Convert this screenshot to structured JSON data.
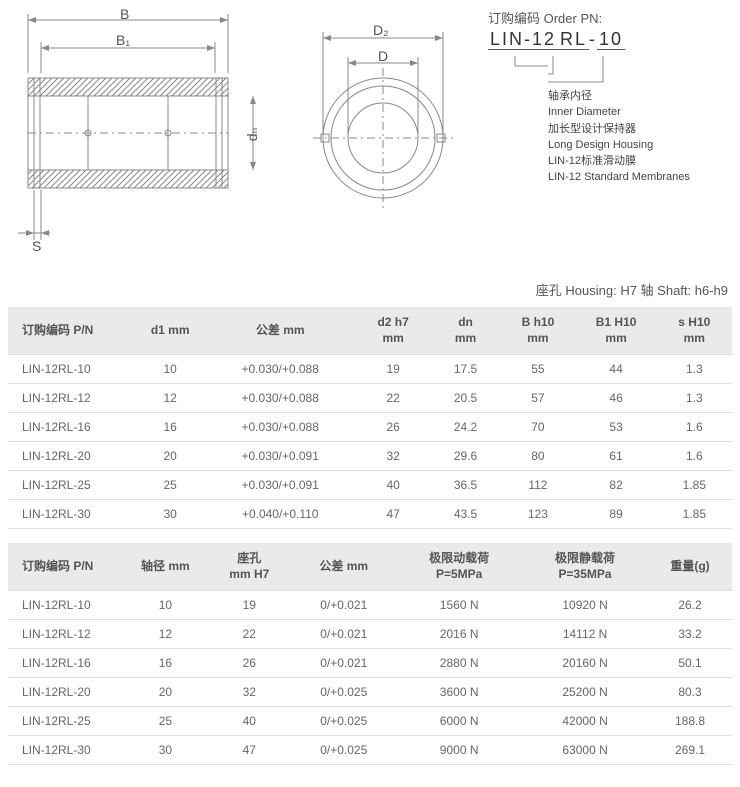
{
  "drawing": {
    "labels": {
      "B": "B",
      "B1": "B₁",
      "D2": "D₂",
      "D": "D",
      "dn": "dₙ",
      "S": "S"
    }
  },
  "orderPN": {
    "title": "订购编码 Order PN:",
    "code_parts": [
      "LIN-12",
      "RL",
      "-",
      "10"
    ],
    "items": [
      {
        "cn": "轴承内径",
        "en": "Inner Diameter"
      },
      {
        "cn": "加长型设计保持器",
        "en": "Long Design Housing"
      },
      {
        "cn": "LIN-12标准滑动膜",
        "en": "LIN-12 Standard Membranes"
      }
    ]
  },
  "housingNote": "座孔 Housing: H7    轴 Shaft: h6-h9",
  "table1": {
    "headers": [
      "订购编码 P/N",
      "d1 mm",
      "公差 mm",
      "d2 h7\nmm",
      "dn\nmm",
      "B h10\nmm",
      "B1 H10\nmm",
      "s H10\nmm"
    ],
    "rows": [
      [
        "LIN-12RL-10",
        "10",
        "+0.030/+0.088",
        "19",
        "17.5",
        "55",
        "44",
        "1.3"
      ],
      [
        "LIN-12RL-12",
        "12",
        "+0.030/+0.088",
        "22",
        "20.5",
        "57",
        "46",
        "1.3"
      ],
      [
        "LIN-12RL-16",
        "16",
        "+0.030/+0.088",
        "26",
        "24.2",
        "70",
        "53",
        "1.6"
      ],
      [
        "LIN-12RL-20",
        "20",
        "+0.030/+0.091",
        "32",
        "29.6",
        "80",
        "61",
        "1.6"
      ],
      [
        "LIN-12RL-25",
        "25",
        "+0.030/+0.091",
        "40",
        "36.5",
        "112",
        "82",
        "1.85"
      ],
      [
        "LIN-12RL-30",
        "30",
        "+0.040/+0.110",
        "47",
        "43.5",
        "123",
        "89",
        "1.85"
      ]
    ],
    "colWidths": [
      "110",
      "60",
      "130",
      "65",
      "60",
      "65",
      "70",
      "65"
    ]
  },
  "table2": {
    "headers": [
      "订购编码 P/N",
      "轴径 mm",
      "座孔\nmm H7",
      "公差 mm",
      "极限动载荷\nP=5MPa",
      "极限静载荷\nP=35MPa",
      "重量(g)"
    ],
    "rows": [
      [
        "LIN-12RL-10",
        "10",
        "19",
        "0/+0.021",
        "1560 N",
        "10920 N",
        "26.2"
      ],
      [
        "LIN-12RL-12",
        "12",
        "22",
        "0/+0.021",
        "2016 N",
        "14112 N",
        "33.2"
      ],
      [
        "LIN-12RL-16",
        "16",
        "26",
        "0/+0.021",
        "2880 N",
        "20160 N",
        "50.1"
      ],
      [
        "LIN-12RL-20",
        "20",
        "32",
        "0/+0.025",
        "3600 N",
        "25200 N",
        "80.3"
      ],
      [
        "LIN-12RL-25",
        "25",
        "40",
        "0/+0.025",
        "6000 N",
        "42000 N",
        "188.8"
      ],
      [
        "LIN-12RL-30",
        "30",
        "47",
        "0/+0.025",
        "9000 N",
        "63000 N",
        "269.1"
      ]
    ],
    "colWidths": [
      "110",
      "80",
      "80",
      "100",
      "120",
      "120",
      "80"
    ]
  }
}
